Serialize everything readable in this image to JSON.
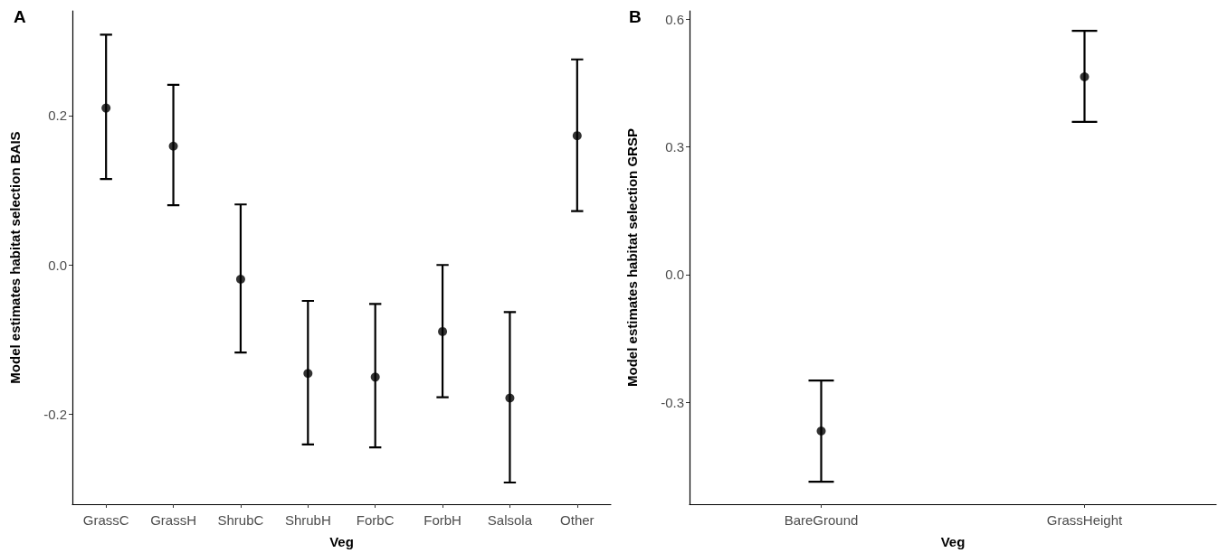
{
  "chart_data": [
    {
      "type": "scatter",
      "title": "A",
      "xlabel": "Veg",
      "ylabel": "Model estimates habitat selection BAIS",
      "categories": [
        "GrassC",
        "GrassH",
        "ShrubC",
        "ShrubH",
        "ForbC",
        "ForbH",
        "Salsola",
        "Other"
      ],
      "values": [
        0.21,
        0.159,
        -0.019,
        -0.145,
        -0.15,
        -0.089,
        -0.178,
        0.173
      ],
      "errors": [
        [
          0.115,
          0.308
        ],
        [
          0.08,
          0.241
        ],
        [
          -0.117,
          0.081
        ],
        [
          -0.24,
          -0.048
        ],
        [
          -0.244,
          -0.052
        ],
        [
          -0.177,
          0.0
        ],
        [
          -0.291,
          -0.063
        ],
        [
          0.072,
          0.275
        ]
      ],
      "color": "#000000",
      "marker": "circle",
      "ylim": [
        -0.32,
        0.34
      ],
      "yticks": [
        -0.2,
        {
          "value": 0,
          "label": "0.0"
        },
        0.2
      ],
      "grid": false
    },
    {
      "type": "scatter",
      "title": "B",
      "xlabel": "Veg",
      "ylabel": "Model estimates habitat selection GRSP",
      "categories": [
        "BareGround",
        "GrassHeight"
      ],
      "values": [
        -0.368,
        0.465
      ],
      "errors": [
        [
          -0.487,
          -0.249
        ],
        [
          0.359,
          0.573
        ]
      ],
      "color": "#000000",
      "marker": "circle",
      "ylim": [
        -0.54,
        0.62
      ],
      "yticks": [
        -0.3,
        {
          "value": 0,
          "label": "0.0"
        },
        0.3,
        0.6
      ],
      "grid": false
    }
  ]
}
